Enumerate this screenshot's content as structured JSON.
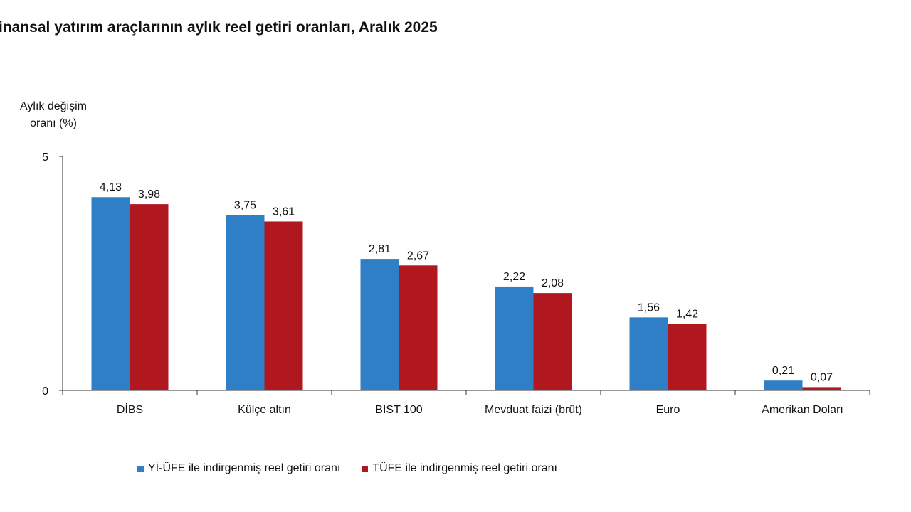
{
  "chart_data": {
    "type": "bar",
    "title": "inansal yatırım araçlarının aylık reel getiri oranları, Aralık 2025",
    "ylabel_lines": [
      "Aylık değişim",
      "oranı (%)"
    ],
    "categories": [
      "DİBS",
      "Külçe altın",
      "BIST 100",
      "Mevduat faizi (brüt)",
      "Euro",
      "Amerikan Doları"
    ],
    "series": [
      {
        "name": "Yİ-ÜFE ile indirgenmiş reel getiri oranı",
        "color": "#2e7fc6",
        "values": [
          4.13,
          3.75,
          2.81,
          2.22,
          1.56,
          0.21
        ],
        "labels": [
          "4,13",
          "3,75",
          "2,81",
          "2,22",
          "1,56",
          "0,21"
        ]
      },
      {
        "name": "TÜFE ile indirgenmiş reel getiri oranı",
        "color": "#b0171f",
        "values": [
          3.98,
          3.61,
          2.67,
          2.08,
          1.42,
          0.07
        ],
        "labels": [
          "3,98",
          "3,61",
          "2,67",
          "2,08",
          "1,42",
          "0,07"
        ]
      }
    ],
    "ylim": [
      0,
      5
    ],
    "yticks": [
      "0",
      "5"
    ],
    "grid": false,
    "legend_position": "bottom"
  }
}
